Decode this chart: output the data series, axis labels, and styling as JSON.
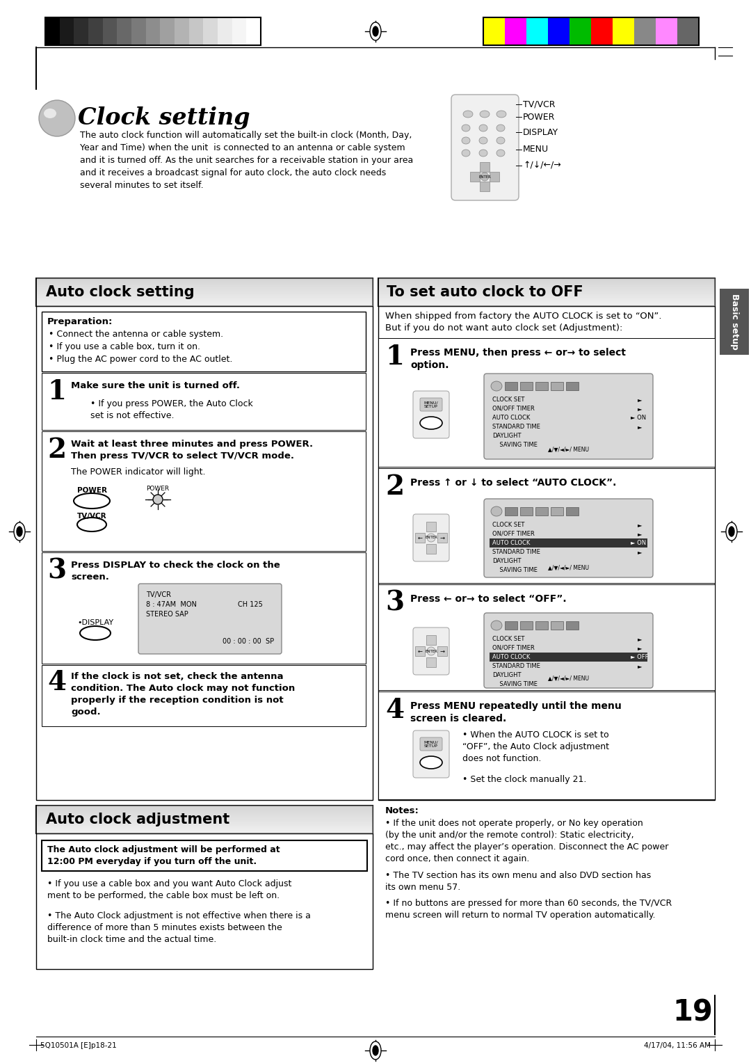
{
  "page_bg": "#ffffff",
  "header_bar_colors_left": [
    "#000000",
    "#1a1a1a",
    "#2d2d2d",
    "#404040",
    "#555555",
    "#686868",
    "#7a7a7a",
    "#8d8d8d",
    "#a0a0a0",
    "#b3b3b3",
    "#c6c6c6",
    "#d9d9d9",
    "#ebebeb",
    "#f5f5f5",
    "#ffffff"
  ],
  "header_bar_colors_right": [
    "#ffff00",
    "#ff00ff",
    "#00ffff",
    "#0000ff",
    "#00bb00",
    "#ff0000",
    "#ffff00",
    "#888888",
    "#ff88ff",
    "#666666"
  ],
  "title_text": "Clock setting",
  "title_intro": "The auto clock function will automatically set the built-in clock (Month, Day,\nYear and Time) when the unit  is connected to an antenna or cable system\nand it is turned off. As the unit searches for a receivable station in your area\nand it receives a broadcast signal for auto clock, the auto clock needs\nseveral minutes to set itself.",
  "section_left_title": "Auto clock setting",
  "section_right_title": "To set auto clock to OFF",
  "section_bottom_title": "Auto clock adjustment",
  "right_labels": [
    "TV/VCR",
    "POWER",
    "DISPLAY",
    "MENU",
    "↑/↓/←/→"
  ],
  "prep_title": "Preparation:",
  "prep_bullets": [
    "Connect the antenna or cable system.",
    "If you use a cable box, turn it on.",
    "Plug the AC power cord to the AC outlet."
  ],
  "step1_left": "Make sure the unit is turned off.",
  "step1_left_sub": "If you press POWER, the Auto Clock\nset is not effective.",
  "step2_left": "Wait at least three minutes and press POWER.\nThen press TV/VCR to select TV/VCR mode.",
  "step2_left_sub": "The POWER indicator will light.",
  "step3_left": "Press DISPLAY to check the clock on the\nscreen.",
  "step4_left": "If the clock is not set, check the antenna\ncondition. The Auto clock may not function\nproperly if the reception condition is not\ngood.",
  "step1_right": "Press MENU, then press ← or→ to select\noption.",
  "step2_right": "Press ↑ or ↓ to select “AUTO CLOCK”.",
  "step3_right": "Press ← or→ to select “OFF”.",
  "step4_right": "Press MENU repeatedly until the menu\nscreen is cleared.",
  "step4_right_sub1": "When the AUTO CLOCK is set to\n“OFF”, the Auto Clock adjustment\ndoes not function.",
  "step4_right_sub2": "Set the clock manually 21.",
  "adj_box_text": "The Auto clock adjustment will be performed at\n12:00 PM everyday if you turn off the unit.",
  "adj_bullets": [
    "If you use a cable box and you want Auto Clock adjust\nment to be performed, the cable box must be left on.",
    "The Auto Clock adjustment is not effective when there is a\ndifference of more than 5 minutes exists between the\nbuilt-in clock time and the actual time."
  ],
  "notes_title": "Notes:",
  "note1": "If the unit does not operate properly, or No key operation\n(by the unit and/or the remote control): Static electricity,\netc., may affect the player’s operation. Disconnect the AC power\ncord once, then connect it again.",
  "note1_bold": "If the unit does not operate properly, or No key operation\n(by the unit and/or the remote control):",
  "note2": "The TV section has its own menu and also DVD section has\nits own menu 57.",
  "note3": "If no buttons are pressed for more than 60 seconds, the TV/VCR\nmenu screen will return to normal TV operation automatically.",
  "page_number": "19",
  "footer_left": "5Q10501A [E]p18-21",
  "footer_mid": "19",
  "footer_right": "4/17/04, 11:56 AM",
  "sidebar_text": "Basic setup",
  "menu_items": [
    "CLOCK SET",
    "ON/OFF TIMER",
    "AUTO CLOCK",
    "STANDARD TIME",
    "DAYLIGHT",
    "    SAVING TIME"
  ]
}
